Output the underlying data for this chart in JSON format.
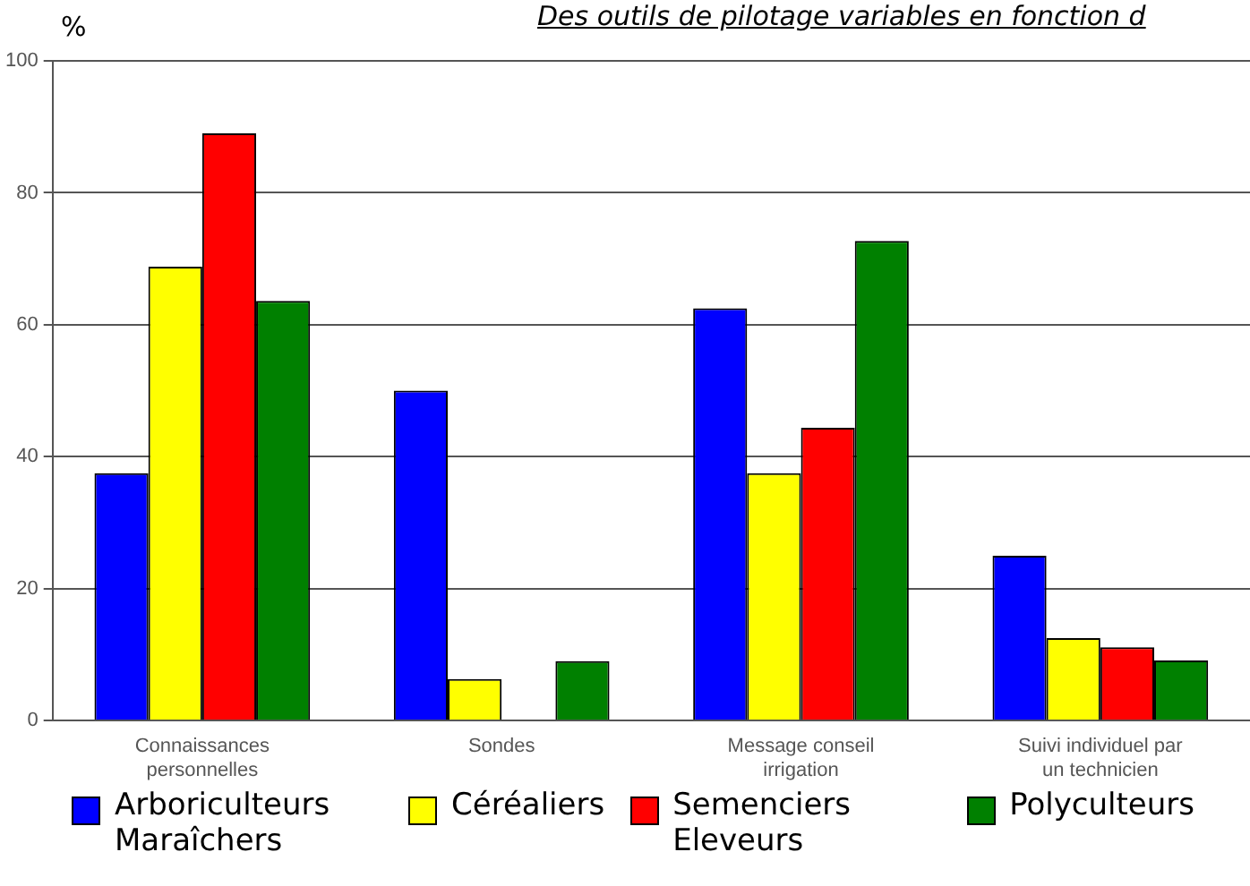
{
  "chart_data": {
    "type": "bar",
    "title": "Des outils de pilotage variables en fonction d",
    "ylabel": "%",
    "categories": [
      "Connaissances personnelles",
      "Sondes",
      "Message conseil irrigation",
      "Suivi individuel par un technicien"
    ],
    "series": [
      {
        "name": "Arboriculteurs Maraîchers",
        "color": "#0000ff",
        "values": [
          37.5,
          50,
          62.5,
          25
        ]
      },
      {
        "name": "Céréaliers",
        "color": "#ffff00",
        "values": [
          68.8,
          6.3,
          37.5,
          12.5
        ]
      },
      {
        "name": "Semenciers Eleveurs",
        "color": "#ff0000",
        "values": [
          89,
          null,
          44.4,
          11.1
        ]
      },
      {
        "name": "Polyculteurs",
        "color": "#008000",
        "values": [
          63.6,
          9,
          72.7,
          9.1
        ]
      }
    ],
    "ylim": [
      0,
      100
    ],
    "yticks": [
      0,
      20,
      40,
      60,
      80,
      100
    ],
    "grid": "y",
    "legend": "bottom"
  }
}
